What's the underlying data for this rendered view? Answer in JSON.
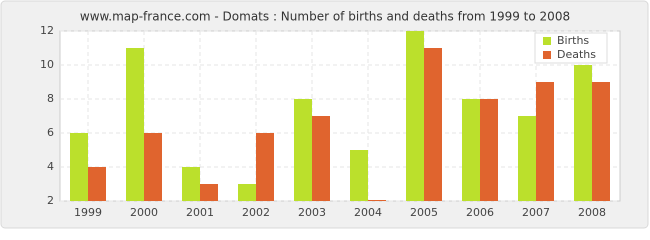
{
  "chart_data": {
    "type": "bar",
    "title": "www.map-france.com - Domats : Number of births and deaths from 1999 to 2008",
    "categories": [
      "1999",
      "2000",
      "2001",
      "2002",
      "2003",
      "2004",
      "2005",
      "2006",
      "2007",
      "2008"
    ],
    "series": [
      {
        "name": "Births",
        "color": "#bbe02c",
        "values": [
          6,
          11,
          4,
          3,
          8,
          5,
          12,
          8,
          7,
          10
        ]
      },
      {
        "name": "Deaths",
        "color": "#e0642e",
        "values": [
          4,
          6,
          3,
          6,
          7,
          2,
          11,
          8,
          9,
          9
        ]
      }
    ],
    "ylim": [
      2,
      12
    ],
    "yticks": [
      2,
      4,
      6,
      8,
      10,
      12
    ],
    "grid": true,
    "legend": "top-right"
  }
}
